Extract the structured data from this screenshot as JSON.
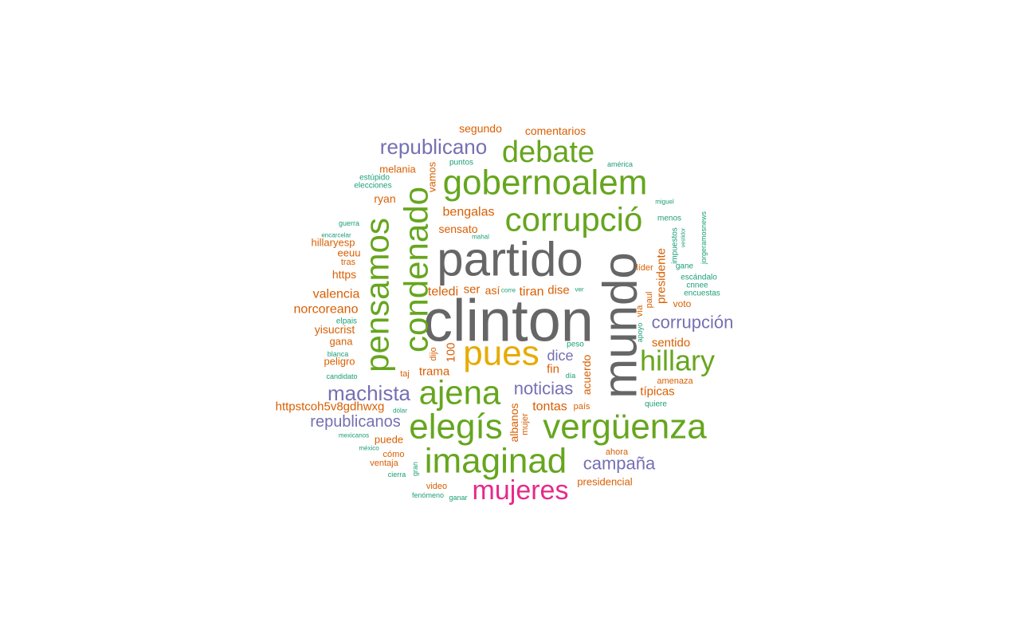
{
  "colors": {
    "gray": "#666666",
    "green": "#66a61e",
    "orange": "#d95f02",
    "purple": "#7570b3",
    "teal": "#1b9e77",
    "yellow": "#e6ab02",
    "pink": "#e7298a"
  },
  "words": [
    {
      "text": "clinton",
      "color": "gray"
    },
    {
      "text": "mundo",
      "color": "gray"
    },
    {
      "text": "partido",
      "color": "gray"
    },
    {
      "text": "pues",
      "color": "yellow"
    },
    {
      "text": "imaginad",
      "color": "green"
    },
    {
      "text": "vergüenza",
      "color": "green"
    },
    {
      "text": "elegís",
      "color": "green"
    },
    {
      "text": "ajena",
      "color": "green"
    },
    {
      "text": "gobernoalem",
      "color": "green"
    },
    {
      "text": "corrupció",
      "color": "green"
    },
    {
      "text": "pensamos",
      "color": "green"
    },
    {
      "text": "condenado",
      "color": "green"
    },
    {
      "text": "debate",
      "color": "green"
    },
    {
      "text": "hillary",
      "color": "green"
    },
    {
      "text": "mujeres",
      "color": "pink"
    },
    {
      "text": "republicano",
      "color": "purple"
    },
    {
      "text": "machista",
      "color": "purple"
    },
    {
      "text": "corrupción",
      "color": "purple"
    },
    {
      "text": "noticias",
      "color": "purple"
    },
    {
      "text": "campaña",
      "color": "purple"
    },
    {
      "text": "republicanos",
      "color": "purple"
    },
    {
      "text": "dice",
      "color": "purple"
    },
    {
      "text": "segundo",
      "color": "orange"
    },
    {
      "text": "comentarios",
      "color": "orange"
    },
    {
      "text": "melania",
      "color": "orange"
    },
    {
      "text": "vamos",
      "color": "orange"
    },
    {
      "text": "ryan",
      "color": "orange"
    },
    {
      "text": "bengalas",
      "color": "orange"
    },
    {
      "text": "sensato",
      "color": "orange"
    },
    {
      "text": "hillaryesp",
      "color": "orange"
    },
    {
      "text": "eeuu",
      "color": "orange"
    },
    {
      "text": "tras",
      "color": "orange"
    },
    {
      "text": "https",
      "color": "orange"
    },
    {
      "text": "valencia",
      "color": "orange"
    },
    {
      "text": "norcoreano",
      "color": "orange"
    },
    {
      "text": "yisucrist",
      "color": "orange"
    },
    {
      "text": "gana",
      "color": "orange"
    },
    {
      "text": "peligro",
      "color": "orange"
    },
    {
      "text": "teledi",
      "color": "orange"
    },
    {
      "text": "ser",
      "color": "orange"
    },
    {
      "text": "así",
      "color": "orange"
    },
    {
      "text": "tiran",
      "color": "orange"
    },
    {
      "text": "dise",
      "color": "orange"
    },
    {
      "text": "100",
      "color": "orange"
    },
    {
      "text": "dijo",
      "color": "orange"
    },
    {
      "text": "trama",
      "color": "orange"
    },
    {
      "text": "taj",
      "color": "orange"
    },
    {
      "text": "fin",
      "color": "orange"
    },
    {
      "text": "acuerdo",
      "color": "orange"
    },
    {
      "text": "albanos",
      "color": "orange"
    },
    {
      "text": "mujer",
      "color": "orange"
    },
    {
      "text": "tontas",
      "color": "orange"
    },
    {
      "text": "país",
      "color": "orange"
    },
    {
      "text": "httpstcoh5v8gdhwxg",
      "color": "orange"
    },
    {
      "text": "puede",
      "color": "orange"
    },
    {
      "text": "cómo",
      "color": "orange"
    },
    {
      "text": "ventaja",
      "color": "orange"
    },
    {
      "text": "video",
      "color": "orange"
    },
    {
      "text": "presidencial",
      "color": "orange"
    },
    {
      "text": "ahora",
      "color": "orange"
    },
    {
      "text": "presidente",
      "color": "orange"
    },
    {
      "text": "paul",
      "color": "orange"
    },
    {
      "text": "líder",
      "color": "orange"
    },
    {
      "text": "vía",
      "color": "orange"
    },
    {
      "text": "voto",
      "color": "orange"
    },
    {
      "text": "sentido",
      "color": "orange"
    },
    {
      "text": "típicas",
      "color": "orange"
    },
    {
      "text": "amenaza",
      "color": "orange"
    },
    {
      "text": "puntos",
      "color": "teal"
    },
    {
      "text": "américa",
      "color": "teal"
    },
    {
      "text": "estúpido",
      "color": "teal"
    },
    {
      "text": "elecciones",
      "color": "teal"
    },
    {
      "text": "guerra",
      "color": "teal"
    },
    {
      "text": "encarcelar",
      "color": "teal"
    },
    {
      "text": "mahal",
      "color": "teal"
    },
    {
      "text": "miguel",
      "color": "teal"
    },
    {
      "text": "menos",
      "color": "teal"
    },
    {
      "text": "impuestos",
      "color": "teal"
    },
    {
      "text": "vestidor",
      "color": "teal"
    },
    {
      "text": "jorgeramosnews",
      "color": "teal"
    },
    {
      "text": "gane",
      "color": "teal"
    },
    {
      "text": "escándalo",
      "color": "teal"
    },
    {
      "text": "cnnee",
      "color": "teal"
    },
    {
      "text": "encuestas",
      "color": "teal"
    },
    {
      "text": "corre",
      "color": "teal"
    },
    {
      "text": "ver",
      "color": "teal"
    },
    {
      "text": "elpais",
      "color": "teal"
    },
    {
      "text": "blanca",
      "color": "teal"
    },
    {
      "text": "candidato",
      "color": "teal"
    },
    {
      "text": "apoyo",
      "color": "teal"
    },
    {
      "text": "peso",
      "color": "teal"
    },
    {
      "text": "día",
      "color": "teal"
    },
    {
      "text": "dólar",
      "color": "teal"
    },
    {
      "text": "mexicanos",
      "color": "teal"
    },
    {
      "text": "méxico",
      "color": "teal"
    },
    {
      "text": "quiere",
      "color": "teal"
    },
    {
      "text": "gran",
      "color": "teal"
    },
    {
      "text": "cierra",
      "color": "teal"
    },
    {
      "text": "fenómeno",
      "color": "teal"
    },
    {
      "text": "ganar",
      "color": "teal"
    }
  ]
}
